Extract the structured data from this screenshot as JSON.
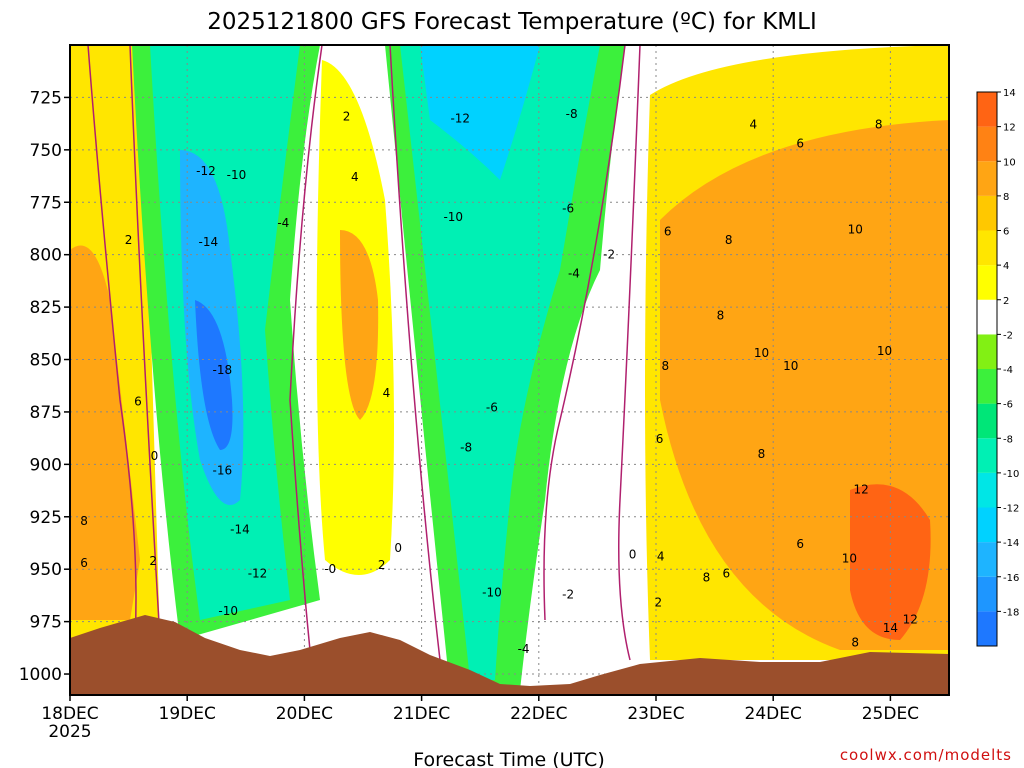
{
  "title": "2025121800 GFS Forecast Temperature (ºC) for KMLI",
  "xlabel": "Forecast Time (UTC)",
  "credit": "coolwx.com/modelts",
  "colors": {
    "terrain": "#9b4f2c",
    "zero_line": "#b0206e",
    "bands": [
      "#1e78ff",
      "#1e96ff",
      "#1eb4ff",
      "#00d2ff",
      "#00e6e6",
      "#00f0b4",
      "#00e678",
      "#3cf03c",
      "#82f014",
      "#ffffff",
      "#ffff00",
      "#ffe600",
      "#ffc800",
      "#ffa514",
      "#ff8214",
      "#ff6414"
    ]
  },
  "chart_data": {
    "type": "heatmap",
    "title": "2025121800 GFS Forecast Temperature (ºC) for KMLI",
    "xlabel": "Forecast Time (UTC)",
    "ylabel": "",
    "x_ticks": [
      "18DEC\n2025",
      "19DEC",
      "20DEC",
      "21DEC",
      "22DEC",
      "23DEC",
      "24DEC",
      "25DEC"
    ],
    "y_ticks": [
      725,
      750,
      775,
      800,
      825,
      850,
      875,
      900,
      925,
      950,
      975,
      1000
    ],
    "ylim_hPa": [
      700,
      1010
    ],
    "xlim_days_from_18DEC": [
      0,
      7.5
    ],
    "colorbar": {
      "levels": [
        -18,
        -16,
        -14,
        -12,
        -10,
        -8,
        -6,
        -4,
        -2,
        2,
        4,
        6,
        8,
        10,
        12,
        14
      ],
      "bands": [
        "<-18",
        "-18..-16",
        "-16..-14",
        "-14..-12",
        "-12..-10",
        "-10..-8",
        "-8..-6",
        "-6..-4",
        "-4..-2",
        "-2..2",
        "2..4",
        "4..6",
        "6..8",
        "8..10",
        "10..12",
        ">12"
      ]
    },
    "contour_labels": [
      {
        "text": "2",
        "day": 0.5,
        "p": 793
      },
      {
        "text": "6",
        "day": 0.58,
        "p": 870
      },
      {
        "text": "0",
        "day": 0.72,
        "p": 896
      },
      {
        "text": "8",
        "day": 0.12,
        "p": 927
      },
      {
        "text": "6",
        "day": 0.12,
        "p": 947
      },
      {
        "text": "2",
        "day": 0.71,
        "p": 946
      },
      {
        "text": "-12",
        "day": 1.16,
        "p": 760
      },
      {
        "text": "-10",
        "day": 1.42,
        "p": 762
      },
      {
        "text": "-14",
        "day": 1.18,
        "p": 794
      },
      {
        "text": "-18",
        "day": 1.3,
        "p": 855
      },
      {
        "text": "-16",
        "day": 1.3,
        "p": 903
      },
      {
        "text": "-14",
        "day": 1.45,
        "p": 931
      },
      {
        "text": "-12",
        "day": 1.6,
        "p": 952
      },
      {
        "text": "-10",
        "day": 1.35,
        "p": 970
      },
      {
        "text": "-4",
        "day": 1.82,
        "p": 785
      },
      {
        "text": "2",
        "day": 2.36,
        "p": 734
      },
      {
        "text": "4",
        "day": 2.43,
        "p": 763
      },
      {
        "text": "4",
        "day": 2.7,
        "p": 866
      },
      {
        "text": "0",
        "day": 2.8,
        "p": 940
      },
      {
        "text": "2",
        "day": 2.66,
        "p": 948
      },
      {
        "text": "-0",
        "day": 2.22,
        "p": 950
      },
      {
        "text": "-12",
        "day": 3.33,
        "p": 735
      },
      {
        "text": "-10",
        "day": 3.27,
        "p": 782
      },
      {
        "text": "-8",
        "day": 4.28,
        "p": 733
      },
      {
        "text": "-6",
        "day": 4.25,
        "p": 778
      },
      {
        "text": "-4",
        "day": 4.3,
        "p": 809
      },
      {
        "text": "-2",
        "day": 4.6,
        "p": 800
      },
      {
        "text": "-6",
        "day": 3.6,
        "p": 873
      },
      {
        "text": "-8",
        "day": 3.38,
        "p": 892
      },
      {
        "text": "-10",
        "day": 3.6,
        "p": 961
      },
      {
        "text": "-2",
        "day": 4.25,
        "p": 962
      },
      {
        "text": "-4",
        "day": 3.87,
        "p": 988
      },
      {
        "text": "0",
        "day": 4.8,
        "p": 943
      },
      {
        "text": "4",
        "day": 5.83,
        "p": 738
      },
      {
        "text": "6",
        "day": 6.23,
        "p": 747
      },
      {
        "text": "8",
        "day": 6.9,
        "p": 738
      },
      {
        "text": "6",
        "day": 5.1,
        "p": 789
      },
      {
        "text": "8",
        "day": 5.62,
        "p": 793
      },
      {
        "text": "10",
        "day": 6.7,
        "p": 788
      },
      {
        "text": "8",
        "day": 5.55,
        "p": 829
      },
      {
        "text": "8",
        "day": 5.08,
        "p": 853
      },
      {
        "text": "10",
        "day": 5.9,
        "p": 847
      },
      {
        "text": "10",
        "day": 6.15,
        "p": 853
      },
      {
        "text": "10",
        "day": 6.95,
        "p": 846
      },
      {
        "text": "6",
        "day": 5.03,
        "p": 888
      },
      {
        "text": "8",
        "day": 5.9,
        "p": 895
      },
      {
        "text": "12",
        "day": 6.75,
        "p": 912
      },
      {
        "text": "4",
        "day": 5.04,
        "p": 944
      },
      {
        "text": "8",
        "day": 5.43,
        "p": 954
      },
      {
        "text": "6",
        "day": 5.6,
        "p": 952
      },
      {
        "text": "6",
        "day": 6.23,
        "p": 938
      },
      {
        "text": "10",
        "day": 6.65,
        "p": 945
      },
      {
        "text": "2",
        "day": 5.02,
        "p": 966
      },
      {
        "text": "8",
        "day": 6.7,
        "p": 985
      },
      {
        "text": "14",
        "day": 7.0,
        "p": 978
      },
      {
        "text": "12",
        "day": 7.17,
        "p": 974
      }
    ]
  }
}
